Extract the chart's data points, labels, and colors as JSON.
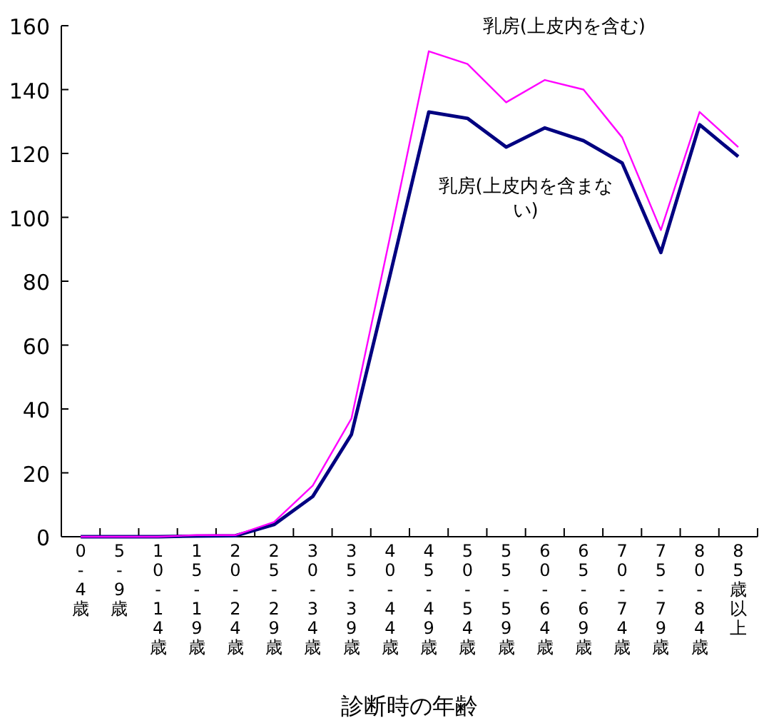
{
  "chart_data": {
    "type": "line",
    "xlabel": "診断時の年齢",
    "categories": [
      "0-4歳",
      "5-9歳",
      "10-14歳",
      "15-19歳",
      "20-24歳",
      "25-29歳",
      "30-34歳",
      "35-39歳",
      "40-44歳",
      "45-49歳",
      "50-54歳",
      "55-59歳",
      "60-64歳",
      "65-69歳",
      "70-74歳",
      "75-79歳",
      "80-84歳",
      "85歳以上"
    ],
    "series": [
      {
        "name": "乳房(上皮内を含む)",
        "color": "#ff00ff",
        "values": [
          0,
          0,
          0,
          0.5,
          0.5,
          4.6,
          16,
          37,
          94,
          152,
          148,
          136,
          143,
          140,
          125,
          96,
          133,
          122
        ]
      },
      {
        "name": "乳房(上皮内を含まない)",
        "color": "#000080",
        "values": [
          0,
          0,
          0,
          0.2,
          0.3,
          3.8,
          12.6,
          32,
          82,
          133,
          131,
          122,
          128,
          124,
          117,
          89,
          129,
          119
        ]
      }
    ],
    "ylim": [
      0,
      160
    ],
    "yticks": [
      0,
      20,
      40,
      60,
      80,
      100,
      120,
      140,
      160
    ],
    "grid": false,
    "legend": false,
    "marker": "none",
    "line_style": "solid"
  }
}
